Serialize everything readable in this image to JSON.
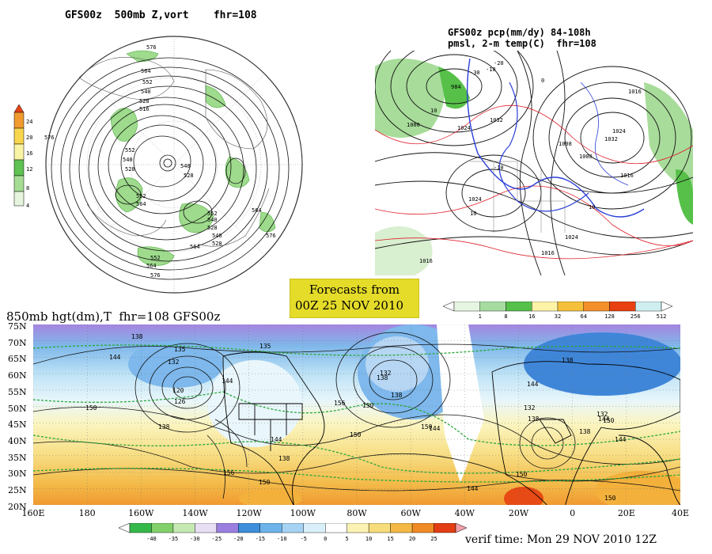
{
  "top_left_panel": {
    "title": "GFS00z  500mb Z,vort    fhr=108",
    "colorbar_ticks": [
      "24",
      "20",
      "16",
      "12",
      "8",
      "4"
    ],
    "contour_labels": [
      "576",
      "564",
      "552",
      "540",
      "528",
      "516",
      "552",
      "540",
      "528",
      "540",
      "528",
      "552",
      "564",
      "576",
      "552",
      "540",
      "528",
      "564",
      "540",
      "528",
      "564",
      "576",
      "552",
      "564",
      "576"
    ]
  },
  "top_right_panel": {
    "title_line1": "GFS00z pcp(mm/dy) 84-108h",
    "title_line2": "pmsl, 2-m temp(C)  fhr=108",
    "labels": [
      "984",
      "1000",
      "1024",
      "1032",
      "1008",
      "1024",
      "1016",
      "1024",
      "1032",
      "1008",
      "1016",
      "1016",
      "1024",
      "1016",
      "10",
      "10",
      "10",
      "-10",
      "-20",
      "-30",
      "0",
      "-10"
    ],
    "colorbar_ticks": [
      "1",
      "8",
      "16",
      "32",
      "64",
      "128",
      "256",
      "512"
    ],
    "colorbar_colors": [
      "#e6f5e1",
      "#a6dca0",
      "#55c04a",
      "#fff3a8",
      "#f6c13a",
      "#f3902a",
      "#e84010",
      "#cfeef0"
    ]
  },
  "forecast_box": {
    "line1": "Forecasts from",
    "line2": "00Z 25 NOV 2010"
  },
  "bottom_panel": {
    "title": "850mb hgt(dm),T  fhr=108 GFS00z",
    "lat_labels": [
      "75N",
      "70N",
      "65N",
      "60N",
      "55N",
      "50N",
      "45N",
      "40N",
      "35N",
      "30N",
      "25N",
      "20N"
    ],
    "lon_labels": [
      "160E",
      "180",
      "160W",
      "140W",
      "120W",
      "100W",
      "80W",
      "60W",
      "40W",
      "20W",
      "0",
      "20E",
      "40E"
    ],
    "height_labels": [
      "138",
      "135",
      "135",
      "144",
      "132",
      "120",
      "126",
      "138",
      "150",
      "144",
      "138",
      "156",
      "150",
      "144",
      "138",
      "150",
      "156",
      "132",
      "138",
      "150",
      "144",
      "138",
      "144",
      "132",
      "138",
      "150",
      "144",
      "144",
      "150",
      "132",
      "138",
      "144",
      "150",
      "150"
    ],
    "colorbar_ticks": [
      "-40",
      "-35",
      "-30",
      "-25",
      "-20",
      "-15",
      "-10",
      "-5",
      "0",
      "5",
      "10",
      "15",
      "20",
      "25"
    ],
    "colorbar_colors": [
      "#35b84a",
      "#82d06a",
      "#c4e9b2",
      "#e9dff5",
      "#9a7fe0",
      "#3d8fdb",
      "#6cb3ea",
      "#a6d3f3",
      "#d9eff9",
      "#ffffff",
      "#fbf2b3",
      "#f6dc7a",
      "#f3b944",
      "#f08a25",
      "#e43d13",
      "#f2a0a8"
    ],
    "verif_time": "verif time: Mon 29 NOV 2010 12Z"
  }
}
